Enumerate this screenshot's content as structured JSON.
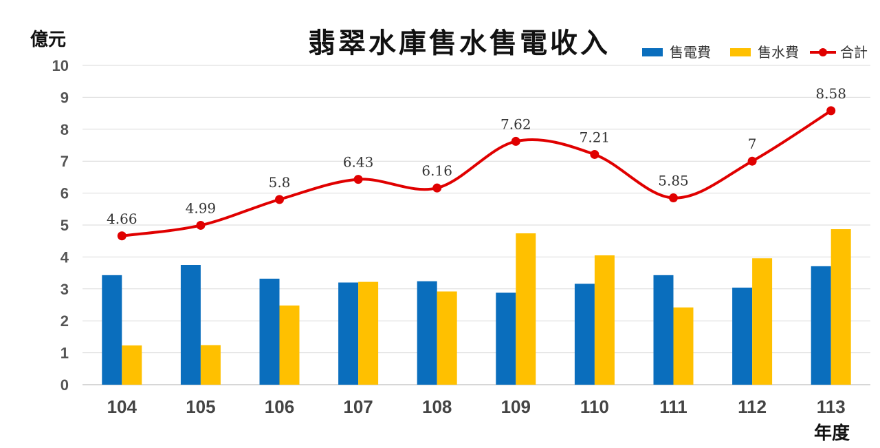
{
  "chart_data": {
    "type": "bar",
    "title": "翡翠水庫售水售電收入",
    "ylabel": "億元",
    "xlabel": "年度",
    "ylim": [
      0,
      10
    ],
    "yticks": [
      "0",
      "1",
      "2",
      "3",
      "4",
      "5",
      "6",
      "7",
      "8",
      "9",
      "10"
    ],
    "categories": [
      "104",
      "105",
      "106",
      "107",
      "108",
      "109",
      "110",
      "111",
      "112",
      "113"
    ],
    "grid": true,
    "legend_position": "top-right",
    "series": [
      {
        "name": "售電費",
        "kind": "bar",
        "color": "#0a6ebd",
        "values": [
          3.43,
          3.75,
          3.32,
          3.2,
          3.24,
          2.88,
          3.16,
          3.43,
          3.04,
          3.71
        ]
      },
      {
        "name": "售水費",
        "kind": "bar",
        "color": "#ffc000",
        "values": [
          1.23,
          1.24,
          2.48,
          3.22,
          2.92,
          4.74,
          4.05,
          2.42,
          3.96,
          4.87
        ]
      },
      {
        "name": "合計",
        "kind": "line",
        "color": "#e00000",
        "values": [
          4.66,
          4.99,
          5.8,
          6.43,
          6.16,
          7.62,
          7.21,
          5.85,
          7,
          8.58
        ],
        "labels": [
          "4.66",
          "4.99",
          "5.8",
          "6.43",
          "6.16",
          "7.62",
          "7.21",
          "5.85",
          "7",
          "8.58"
        ]
      }
    ]
  }
}
